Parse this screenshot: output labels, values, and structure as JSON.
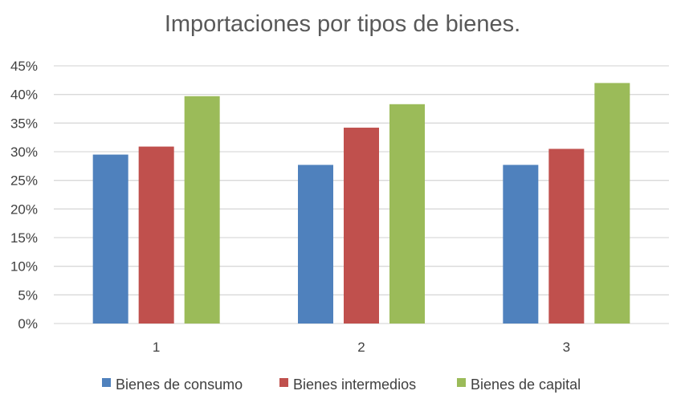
{
  "chart_data": {
    "type": "bar",
    "title": "Importaciones por tipos de bienes.",
    "xlabel": "",
    "ylabel": "",
    "categories": [
      "1",
      "2",
      "3"
    ],
    "series": [
      {
        "name": "Bienes de consumo",
        "color": "#4F81BD",
        "values": [
          0.295,
          0.277,
          0.277
        ]
      },
      {
        "name": "Bienes intermedios",
        "color": "#C0504D",
        "values": [
          0.309,
          0.342,
          0.305
        ]
      },
      {
        "name": "Bienes de capital",
        "color": "#9BBB59",
        "values": [
          0.397,
          0.383,
          0.42
        ]
      }
    ],
    "ylim": [
      0,
      0.45
    ],
    "yticks": [
      "0%",
      "5%",
      "10%",
      "15%",
      "20%",
      "25%",
      "30%",
      "35%",
      "40%",
      "45%"
    ],
    "grid": true,
    "legend_position": "bottom",
    "gridline_color": "#D9D9D9"
  }
}
